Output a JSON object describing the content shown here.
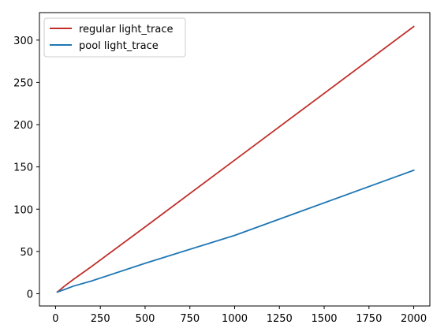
{
  "chart_data": {
    "type": "line",
    "title": "",
    "xlabel": "",
    "ylabel": "",
    "xlim": [
      -90,
      2090
    ],
    "ylim": [
      -14.5,
      332.5
    ],
    "xticks": [
      0,
      250,
      500,
      750,
      1000,
      1250,
      1500,
      1750,
      2000
    ],
    "yticks": [
      0,
      50,
      100,
      150,
      200,
      250,
      300
    ],
    "grid": false,
    "legend": "top-left",
    "series": [
      {
        "name": "regular light_trace",
        "color": "#c0302b",
        "x": [
          10,
          50,
          100,
          200,
          500,
          1000,
          2000
        ],
        "y": [
          2,
          9,
          17,
          32,
          79,
          158,
          316
        ]
      },
      {
        "name": "pool light_trace",
        "color": "#1f77b4",
        "x": [
          10,
          50,
          100,
          200,
          500,
          1000,
          2000
        ],
        "y": [
          2,
          5,
          9,
          15,
          36,
          69,
          146
        ]
      }
    ]
  }
}
